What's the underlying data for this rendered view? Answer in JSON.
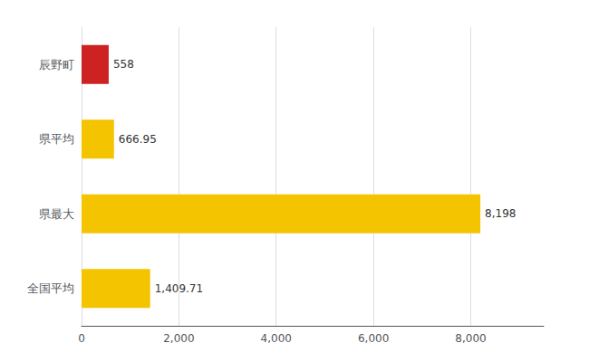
{
  "chart_data": {
    "type": "bar",
    "orientation": "horizontal",
    "categories": [
      "辰野町",
      "県平均",
      "県最大",
      "全国平均"
    ],
    "values": [
      558,
      666.95,
      8198,
      1409.71
    ],
    "value_labels": [
      "558",
      "666.95",
      "8,198",
      "1,409.71"
    ],
    "colors": [
      "#cc2222",
      "#f5c400",
      "#f5c400",
      "#f5c400"
    ],
    "xlim": [
      0,
      9500
    ],
    "xticks": [
      0,
      {
        "value": 2000,
        "label": "2,000"
      },
      {
        "value": 4000,
        "label": "4,000"
      },
      {
        "value": 6000,
        "label": "6,000"
      },
      {
        "value": 8000,
        "label": "8,000"
      }
    ],
    "grid": true,
    "data_labels": true
  }
}
